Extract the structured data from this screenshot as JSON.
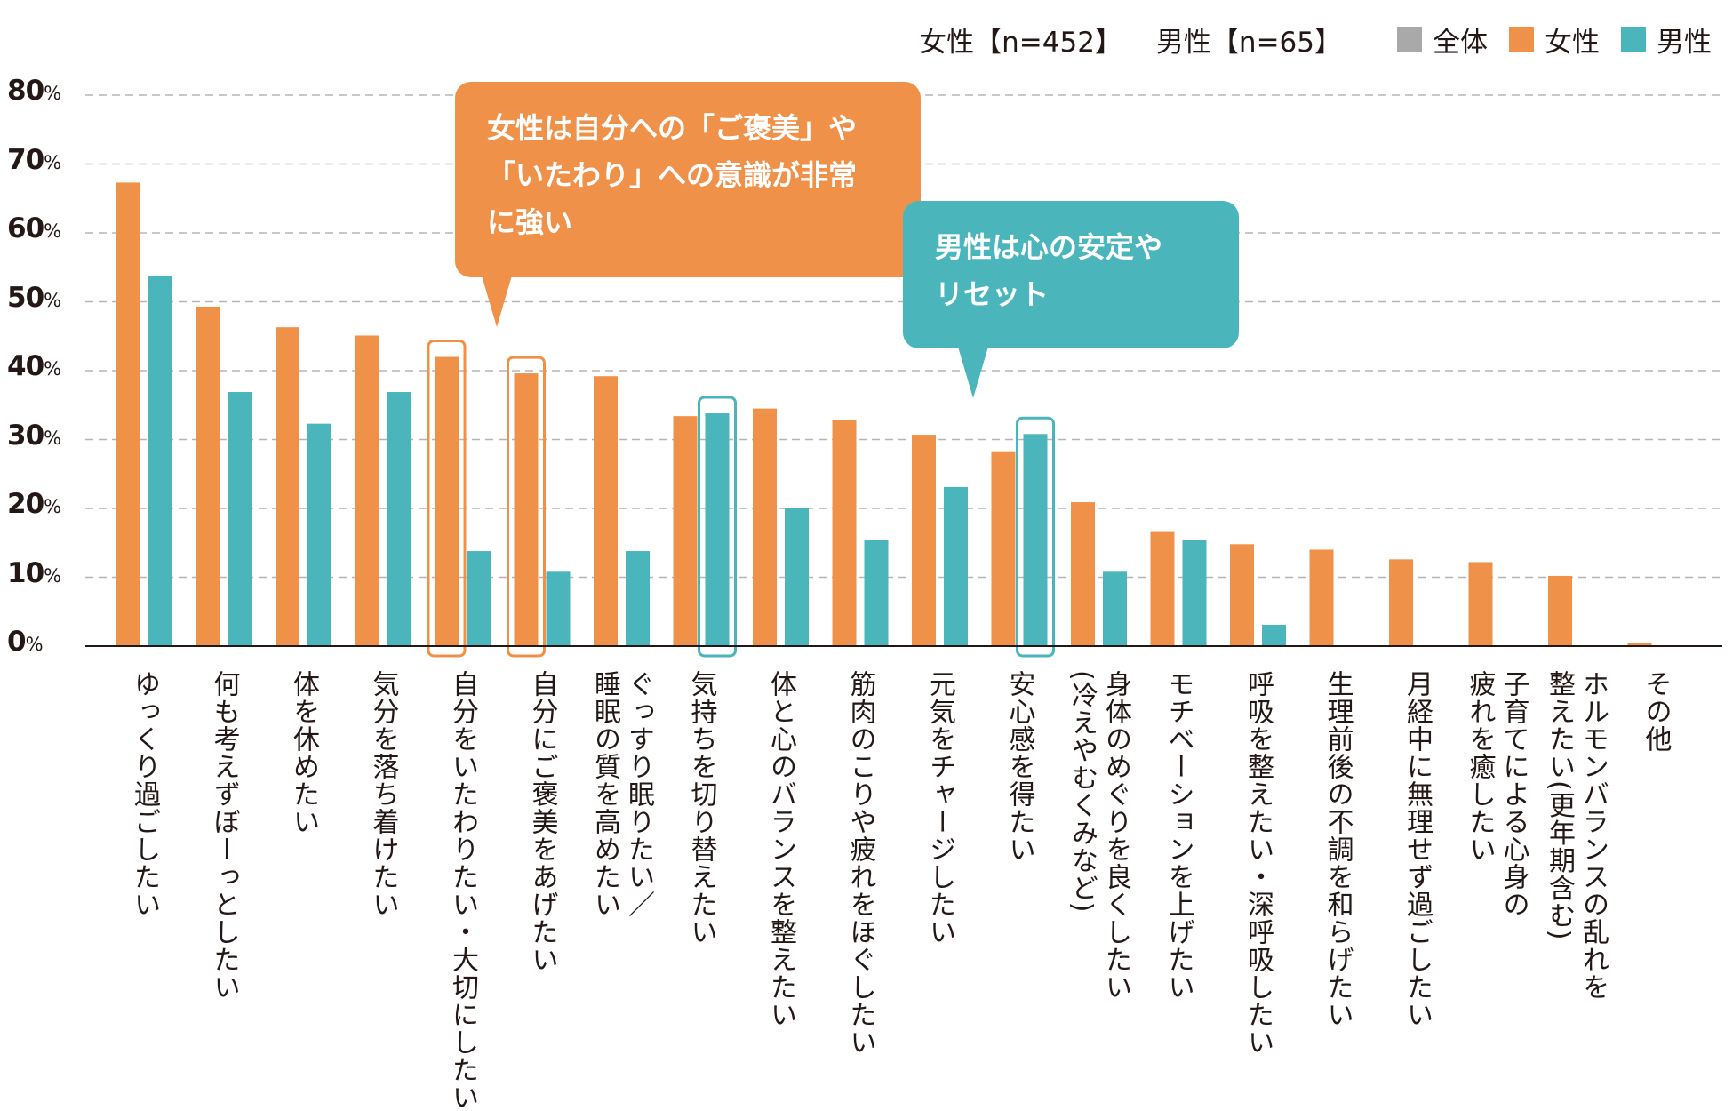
{
  "legend": {
    "sample_female": "女性【n=452】",
    "sample_male": "男性【n=65】",
    "items": [
      {
        "label": "全体",
        "color": "#a9a9a9"
      },
      {
        "label": "女性",
        "color": "#f0914a"
      },
      {
        "label": "男性",
        "color": "#4ab5bb"
      }
    ]
  },
  "callouts": {
    "female": "女性は自分への「ご褒美」や\n「いたわり」への意識が非常\nに強い",
    "male": "男性は心の安定や\nリセット"
  },
  "chart_data": {
    "type": "bar",
    "ylim": [
      0,
      80
    ],
    "yticks": [
      0,
      10,
      20,
      30,
      40,
      50,
      60,
      70,
      80
    ],
    "ytick_labels": [
      {
        "num": "0",
        "unit": "%"
      },
      {
        "num": "10",
        "unit": "%"
      },
      {
        "num": "20",
        "unit": "%"
      },
      {
        "num": "30",
        "unit": "%"
      },
      {
        "num": "40",
        "unit": "%"
      },
      {
        "num": "50",
        "unit": "%"
      },
      {
        "num": "60",
        "unit": "%"
      },
      {
        "num": "70",
        "unit": "%"
      },
      {
        "num": "80",
        "unit": "%"
      }
    ],
    "grid": true,
    "categories": [
      [
        "ゆっくり過ごしたい"
      ],
      [
        "何も考えずぼーっとしたい"
      ],
      [
        "体を休めたい"
      ],
      [
        "気分を落ち着けたい"
      ],
      [
        "自分をいたわりたい・大切にしたい"
      ],
      [
        "自分にご褒美をあげたい"
      ],
      [
        "ぐっすり眠りたい／",
        "睡眠の質を高めたい"
      ],
      [
        "気持ちを切り替えたい"
      ],
      [
        "体と心のバランスを整えたい"
      ],
      [
        "筋肉のこりや疲れをほぐしたい"
      ],
      [
        "元気をチャージしたい"
      ],
      [
        "安心感を得たい"
      ],
      [
        "身体のめぐりを良くしたい",
        "(冷えやむくみなど)"
      ],
      [
        "モチベーションを上げたい"
      ],
      [
        "呼吸を整えたい・深呼吸したい"
      ],
      [
        "生理前後の不調を和らげたい"
      ],
      [
        "月経中に無理せず過ごしたい"
      ],
      [
        "子育てによる心身の",
        "疲れを癒したい"
      ],
      [
        "ホルモンバランスの乱れを",
        "整えたい(更年期含む)"
      ],
      [
        "その他"
      ]
    ],
    "series": [
      {
        "name": "女性",
        "color": "#f0914a",
        "values": [
          67.3,
          49.3,
          46.3,
          45.1,
          42.0,
          39.6,
          39.2,
          33.4,
          34.5,
          32.9,
          30.7,
          28.3,
          20.9,
          16.7,
          14.8,
          14.0,
          12.6,
          12.2,
          10.2,
          0.4
        ]
      },
      {
        "name": "男性",
        "color": "#4ab5bb",
        "values": [
          53.8,
          36.9,
          32.3,
          36.9,
          13.8,
          10.8,
          13.8,
          33.8,
          20.0,
          15.4,
          23.1,
          30.8,
          10.8,
          15.4,
          3.1,
          0,
          0,
          0,
          0,
          0
        ]
      }
    ],
    "highlights": [
      {
        "index": 4,
        "series": "女性"
      },
      {
        "index": 5,
        "series": "女性"
      },
      {
        "index": 7,
        "series": "男性"
      },
      {
        "index": 11,
        "series": "男性"
      }
    ]
  }
}
